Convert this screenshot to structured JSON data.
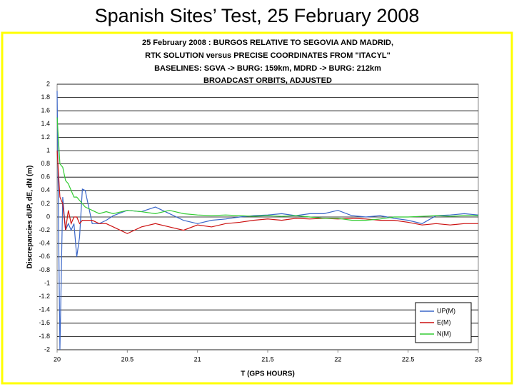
{
  "slide_title": "Spanish Sites’ Test, 25 February 2008",
  "chart_data": {
    "type": "line",
    "title": [
      "25 February 2008 : BURGOS RELATIVE TO SEGOVIA AND MADRID,",
      "RTK SOLUTION versus PRECISE COORDINATES FROM \"ITACYL\"",
      "BASELINES: SGVA -> BURG: 159km, MDRD -> BURG: 212km",
      "BROADCAST ORBITS, ADJUSTED"
    ],
    "x_label": "T (GPS HOURS)",
    "y_label": "Discrepancies dUP, dE, dN  (m)",
    "x": [
      20.0,
      20.02,
      20.04,
      20.06,
      20.08,
      20.1,
      20.12,
      20.14,
      20.16,
      20.18,
      20.2,
      20.25,
      20.3,
      20.35,
      20.4,
      20.5,
      20.6,
      20.7,
      20.8,
      20.9,
      21.0,
      21.1,
      21.2,
      21.3,
      21.4,
      21.5,
      21.6,
      21.7,
      21.8,
      21.9,
      22.0,
      22.1,
      22.2,
      22.3,
      22.4,
      22.5,
      22.6,
      22.7,
      22.8,
      22.9,
      23.0
    ],
    "series": [
      {
        "name": "UP(M)",
        "color": "#3a66c8",
        "values": [
          1.9,
          -2,
          0.3,
          -0.2,
          -0.1,
          -0.2,
          -0.1,
          -0.6,
          -0.3,
          0.42,
          0.4,
          -0.1,
          -0.1,
          -0.05,
          0.02,
          0.1,
          0.08,
          0.15,
          0.05,
          -0.05,
          -0.1,
          -0.05,
          -0.03,
          0,
          0.02,
          0.03,
          0.05,
          0.02,
          0.05,
          0.05,
          0.1,
          0.02,
          0,
          0.02,
          -0.02,
          -0.05,
          -0.1,
          0.02,
          0.03,
          0.05,
          0.03
        ]
      },
      {
        "name": "E(M)",
        "color": "#cc1111",
        "values": [
          1.0,
          0.3,
          0.2,
          -0.2,
          0.1,
          -0.1,
          0,
          0,
          -0.1,
          -0.05,
          -0.05,
          -0.05,
          -0.1,
          -0.1,
          -0.15,
          -0.25,
          -0.15,
          -0.1,
          -0.15,
          -0.2,
          -0.12,
          -0.15,
          -0.1,
          -0.08,
          -0.05,
          -0.03,
          -0.05,
          -0.02,
          -0.03,
          -0.02,
          -0.03,
          -0.02,
          -0.03,
          -0.05,
          -0.05,
          -0.08,
          -0.12,
          -0.1,
          -0.12,
          -0.1,
          -0.1
        ]
      },
      {
        "name": "N(M)",
        "color": "#33cc33",
        "values": [
          1.5,
          0.8,
          0.75,
          0.55,
          0.5,
          0.4,
          0.3,
          0.3,
          0.25,
          0.2,
          0.15,
          0.1,
          0.05,
          0.08,
          0.05,
          0.1,
          0.08,
          0.05,
          0.1,
          0.05,
          0.03,
          0.02,
          0.03,
          0.02,
          0.01,
          0.02,
          0.01,
          0.02,
          0,
          -0.02,
          -0.02,
          -0.05,
          -0.05,
          -0.03,
          0,
          0,
          0.01,
          0.02,
          0.01,
          0.02,
          0.02
        ]
      }
    ],
    "xlim": [
      20,
      23
    ],
    "xticks": [
      20,
      20.5,
      21,
      21.5,
      22,
      22.5,
      23
    ],
    "ylim": [
      -2,
      2
    ],
    "yticks": [
      -2,
      -1.8,
      -1.6,
      -1.4,
      -1.2,
      -1,
      -0.8,
      -0.6,
      -0.4,
      -0.2,
      0,
      0.2,
      0.4,
      0.6,
      0.8,
      1,
      1.2,
      1.4,
      1.6,
      1.8,
      2
    ],
    "grid": true,
    "legend": "lower right"
  }
}
